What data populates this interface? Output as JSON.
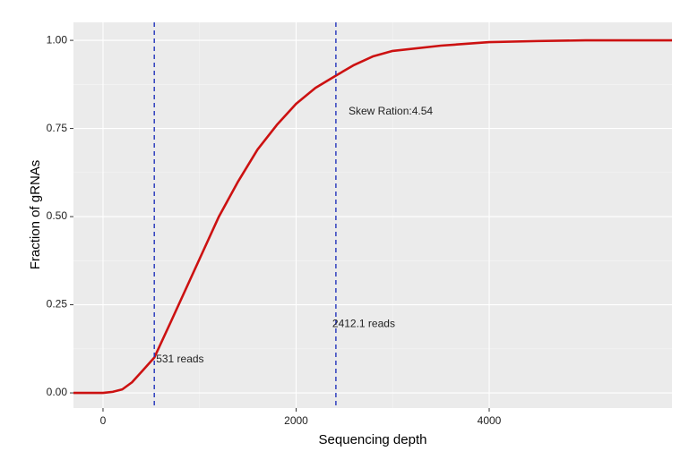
{
  "chart_data": {
    "type": "line",
    "xlabel": "Sequencing depth",
    "ylabel": "Fraction of gRNAs",
    "x": [
      -306,
      0,
      100,
      200,
      300,
      400,
      531,
      700,
      900,
      1000,
      1200,
      1400,
      1600,
      1800,
      2000,
      2200,
      2412.1,
      2600,
      2800,
      3000,
      3500,
      4000,
      4500,
      5000,
      5893
    ],
    "series": [
      {
        "color": "#cc1111",
        "values": [
          0,
          0,
          0.003,
          0.01,
          0.03,
          0.06,
          0.1,
          0.2,
          0.32,
          0.38,
          0.5,
          0.6,
          0.69,
          0.76,
          0.82,
          0.865,
          0.9,
          0.93,
          0.955,
          0.97,
          0.985,
          0.995,
          0.998,
          1.0,
          1.0
        ]
      }
    ],
    "xlim": [
      -306,
      5893
    ],
    "ylim": [
      -0.043,
      1.051
    ],
    "xticks": [
      0,
      2000,
      4000
    ],
    "yticks": [
      {
        "value": 0,
        "label": "0.00"
      },
      {
        "value": 0.25,
        "label": "0.25"
      },
      {
        "value": 0.5,
        "label": "0.50"
      },
      {
        "value": 0.75,
        "label": "0.75"
      },
      {
        "value": 1,
        "label": "1.00"
      }
    ],
    "grid": true,
    "vlines": [
      {
        "value": 531,
        "label": "531 reads",
        "color": "#2233bb"
      },
      {
        "value": 2412.1,
        "label": "2412.1 reads",
        "color": "#2233bb"
      }
    ],
    "annotation": "Skew Ration:4.54"
  }
}
